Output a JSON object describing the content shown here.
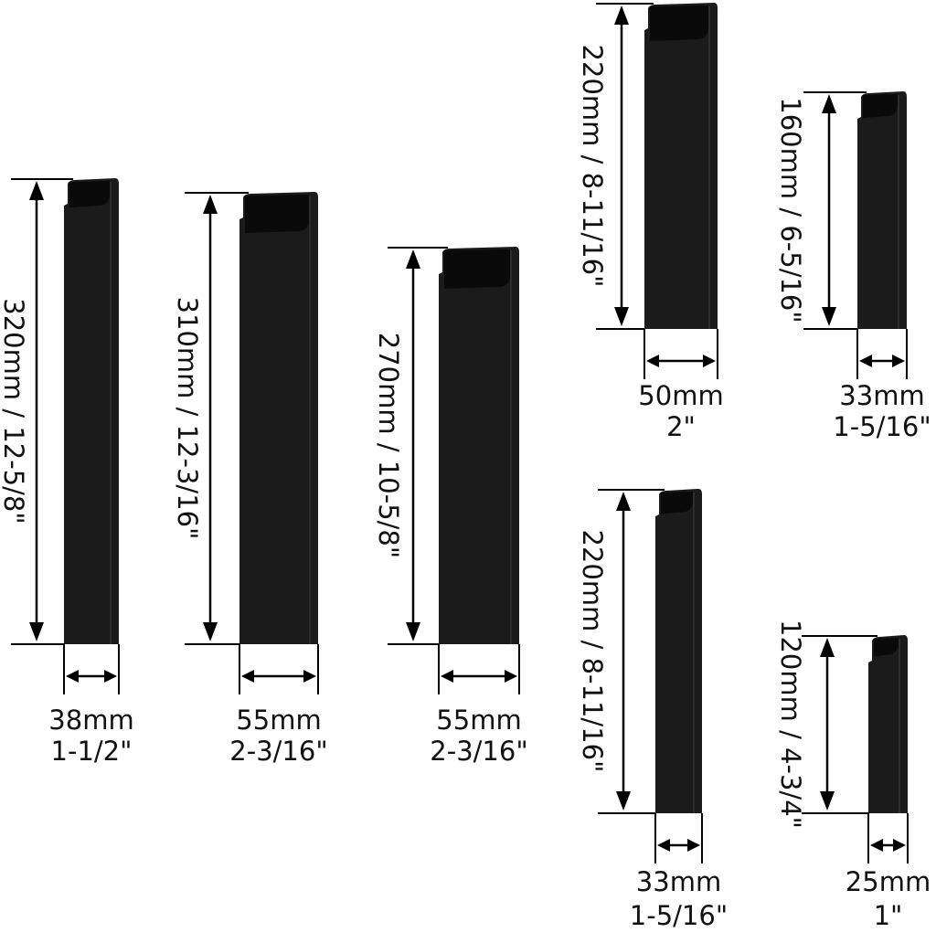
{
  "sheaths": [
    {
      "length_label": "320mm / 12-5/8\"",
      "width_mm": "38mm",
      "width_in": "1-1/2\""
    },
    {
      "length_label": "310mm / 12-3/16\"",
      "width_mm": "55mm",
      "width_in": "2-3/16\""
    },
    {
      "length_label": "270mm / 10-5/8\"",
      "width_mm": "55mm",
      "width_in": "2-3/16\""
    },
    {
      "length_label": "220mm / 8-11/16\"",
      "width_mm": "50mm",
      "width_in": "2\""
    },
    {
      "length_label": "160mm / 6-5/16\"",
      "width_mm": "33mm",
      "width_in": "1-5/16\""
    },
    {
      "length_label": "220mm / 8-11/16\"",
      "width_mm": "33mm",
      "width_in": "1-5/16\""
    },
    {
      "length_label": "120mm / 4-3/4\"",
      "width_mm": "25mm",
      "width_in": "1\""
    }
  ],
  "colors": {
    "sheath": "#1b1b1b",
    "sheath_top": "#0a0a0a",
    "line": "#000000"
  }
}
